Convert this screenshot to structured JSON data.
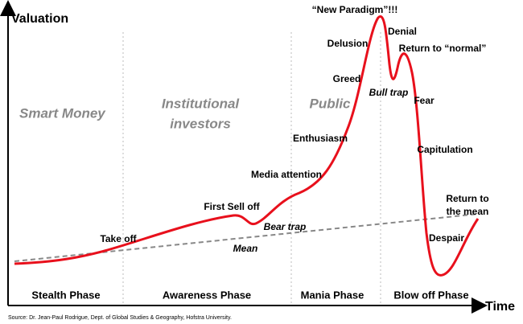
{
  "title": "Valuation",
  "x_axis_label": "Time",
  "groups": [
    "Smart Money",
    "Institutional",
    "investors",
    "Public"
  ],
  "phases": [
    "Stealth Phase",
    "Awareness Phase",
    "Mania Phase",
    "Blow off Phase"
  ],
  "labels": {
    "new_paradigm": "“New Paradigm”!!!",
    "delusion": "Delusion",
    "denial": "Denial",
    "return_normal": "Return to “normal”",
    "greed": "Greed",
    "bull_trap": "Bull trap",
    "fear": "Fear",
    "enthusiasm": "Enthusiasm",
    "capitulation": "Capitulation",
    "media": "Media attention",
    "first_sell": "First Sell off",
    "bear_trap": "Bear trap",
    "take_off": "Take off",
    "mean": "Mean",
    "return_mean_1": "Return to",
    "return_mean_2": "the mean",
    "despair": "Despair"
  },
  "source": "Source: Dr. Jean-Paul Rodrigue, Dept. of Global Studies & Geography, Hofstra University."
}
